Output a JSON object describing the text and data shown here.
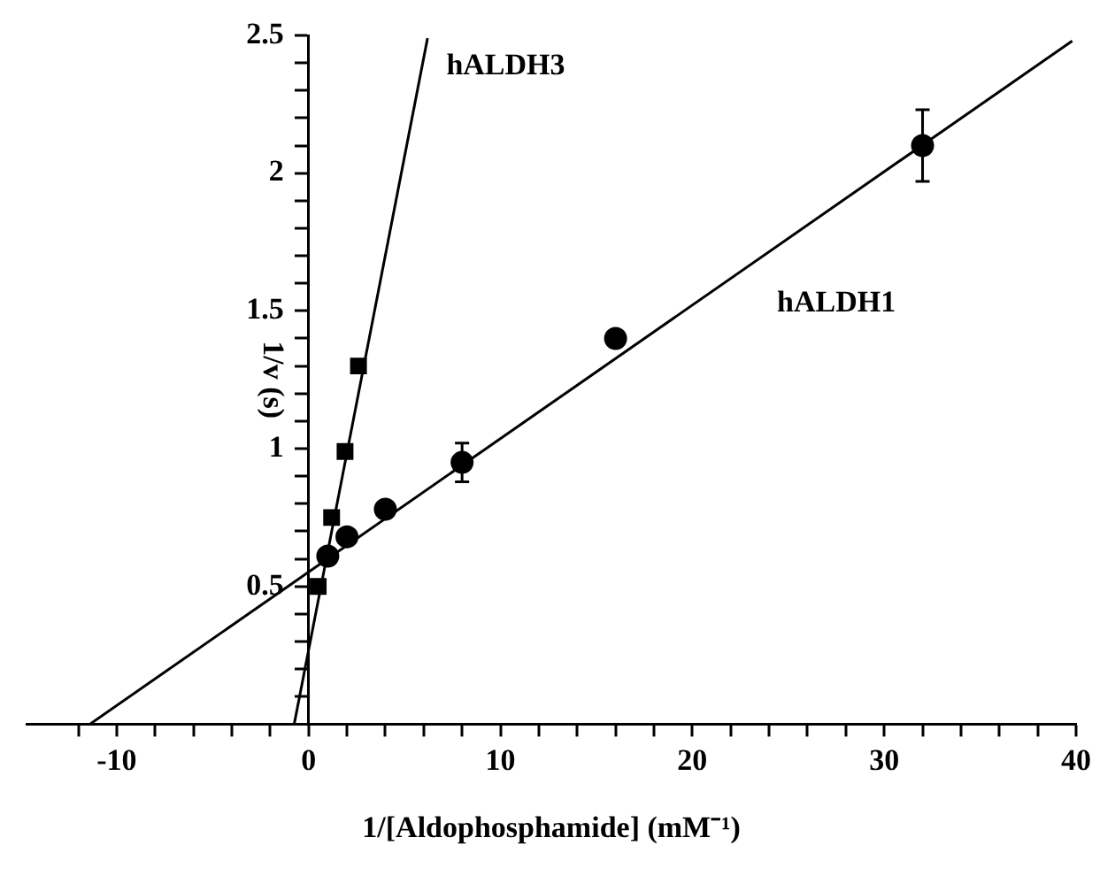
{
  "chart_data": {
    "type": "scatter",
    "xlabel": "1/[Aldophosphamide] (mM⁻¹)",
    "ylabel": "1/v (s)",
    "xlim": [
      -14.7,
      40
    ],
    "ylim": [
      0,
      2.5
    ],
    "xticks": [
      {
        "value": -12,
        "label": null
      },
      -10,
      {
        "value": -8,
        "label": null
      },
      {
        "value": -6,
        "label": null
      },
      {
        "value": -4,
        "label": null
      },
      {
        "value": -2,
        "label": null
      },
      0,
      {
        "value": 2,
        "label": null
      },
      {
        "value": 4,
        "label": null
      },
      {
        "value": 6,
        "label": null
      },
      {
        "value": 8,
        "label": null
      },
      10,
      {
        "value": 12,
        "label": null
      },
      {
        "value": 14,
        "label": null
      },
      {
        "value": 16,
        "label": null
      },
      {
        "value": 18,
        "label": null
      },
      20,
      {
        "value": 22,
        "label": null
      },
      {
        "value": 24,
        "label": null
      },
      {
        "value": 26,
        "label": null
      },
      {
        "value": 28,
        "label": null
      },
      30,
      {
        "value": 32,
        "label": null
      },
      {
        "value": 34,
        "label": null
      },
      {
        "value": 36,
        "label": null
      },
      {
        "value": 38,
        "label": null
      },
      40
    ],
    "yticks": [
      {
        "value": 0.1,
        "label": null
      },
      {
        "value": 0.2,
        "label": null
      },
      {
        "value": 0.3,
        "label": null
      },
      {
        "value": 0.4,
        "label": null
      },
      0.5,
      {
        "value": 0.6,
        "label": null
      },
      {
        "value": 0.7,
        "label": null
      },
      {
        "value": 0.8,
        "label": null
      },
      {
        "value": 0.9,
        "label": null
      },
      1,
      {
        "value": 1.1,
        "label": null
      },
      {
        "value": 1.2,
        "label": null
      },
      {
        "value": 1.3,
        "label": null
      },
      {
        "value": 1.4,
        "label": null
      },
      1.5,
      {
        "value": 1.6,
        "label": null
      },
      {
        "value": 1.7,
        "label": null
      },
      {
        "value": 1.8,
        "label": null
      },
      {
        "value": 1.9,
        "label": null
      },
      2,
      {
        "value": 2.1,
        "label": null
      },
      {
        "value": 2.2,
        "label": null
      },
      {
        "value": 2.3,
        "label": null
      },
      {
        "value": 2.4,
        "label": null
      },
      2.5
    ],
    "grid": false,
    "legend": false,
    "series": [
      {
        "type": "scatter",
        "marker": "square",
        "color": "#000000",
        "x": [
          0.5,
          1.2,
          1.9,
          2.6
        ],
        "values": [
          0.5,
          0.75,
          0.99,
          1.3
        ]
      },
      {
        "type": "scatter",
        "marker": "circle",
        "color": "#000000",
        "x": [
          1,
          2,
          4,
          8,
          16,
          32
        ],
        "values": [
          0.61,
          0.68,
          0.78,
          0.95,
          1.4,
          2.1
        ],
        "errors": [
          null,
          null,
          null,
          0.07,
          null,
          0.13
        ]
      },
      {
        "name": "hALDH3",
        "type": "line",
        "marker": "none",
        "color": "#000000",
        "x": [
          -0.75,
          6.2
        ],
        "values": [
          0,
          2.49
        ]
      },
      {
        "name": "hALDH1",
        "type": "line",
        "marker": "none",
        "color": "#000000",
        "x": [
          -11.4,
          39.8
        ],
        "values": [
          0,
          2.48
        ]
      }
    ]
  }
}
